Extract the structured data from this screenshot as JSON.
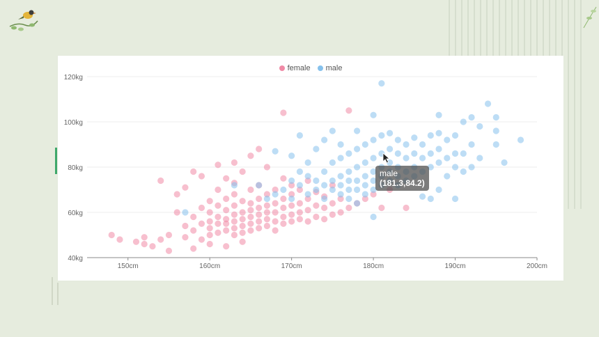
{
  "colors": {
    "background": "#e6ecde",
    "female": "#f08aa6",
    "male": "#86c1ec",
    "accent": "#3ea86a"
  },
  "legend": [
    {
      "name": "female",
      "color": "#f08aa6"
    },
    {
      "name": "male",
      "color": "#86c1ec"
    }
  ],
  "tooltip": {
    "series": "male",
    "value": "(181.3,84.2)"
  },
  "chart_data": {
    "type": "scatter",
    "xlim": [
      145,
      200
    ],
    "ylim": [
      40,
      120
    ],
    "x_ticks": [
      "150cm",
      "160cm",
      "170cm",
      "180cm",
      "190cm",
      "200cm"
    ],
    "x_tick_values": [
      150,
      160,
      170,
      180,
      190,
      200
    ],
    "y_ticks": [
      "40kg",
      "60kg",
      "80kg",
      "100kg",
      "120kg"
    ],
    "y_tick_values": [
      40,
      60,
      80,
      100,
      120
    ],
    "grid": true,
    "legend_position": "top-center",
    "series": [
      {
        "name": "female",
        "color": "#f08aa6",
        "points": [
          [
            148,
            50
          ],
          [
            149,
            48
          ],
          [
            151,
            47
          ],
          [
            152,
            46
          ],
          [
            152,
            49
          ],
          [
            153,
            45
          ],
          [
            154,
            48
          ],
          [
            155,
            43
          ],
          [
            155,
            50
          ],
          [
            156,
            60
          ],
          [
            157,
            54
          ],
          [
            157,
            49
          ],
          [
            158,
            52
          ],
          [
            158,
            58
          ],
          [
            159,
            55
          ],
          [
            159,
            62
          ],
          [
            159,
            48
          ],
          [
            160,
            50
          ],
          [
            160,
            53
          ],
          [
            160,
            56
          ],
          [
            160,
            60
          ],
          [
            160,
            65
          ],
          [
            161,
            51
          ],
          [
            161,
            55
          ],
          [
            161,
            58
          ],
          [
            161,
            63
          ],
          [
            161,
            70
          ],
          [
            162,
            52
          ],
          [
            162,
            55
          ],
          [
            162,
            57
          ],
          [
            162,
            61
          ],
          [
            162,
            66
          ],
          [
            162,
            75
          ],
          [
            163,
            50
          ],
          [
            163,
            53
          ],
          [
            163,
            56
          ],
          [
            163,
            59
          ],
          [
            163,
            63
          ],
          [
            163,
            68
          ],
          [
            163,
            73
          ],
          [
            164,
            51
          ],
          [
            164,
            54
          ],
          [
            164,
            57
          ],
          [
            164,
            60
          ],
          [
            164,
            65
          ],
          [
            164,
            78
          ],
          [
            165,
            52
          ],
          [
            165,
            55
          ],
          [
            165,
            58
          ],
          [
            165,
            61
          ],
          [
            165,
            64
          ],
          [
            165,
            70
          ],
          [
            165,
            85
          ],
          [
            166,
            53
          ],
          [
            166,
            56
          ],
          [
            166,
            59
          ],
          [
            166,
            62
          ],
          [
            166,
            66
          ],
          [
            166,
            72
          ],
          [
            167,
            54
          ],
          [
            167,
            57
          ],
          [
            167,
            60
          ],
          [
            167,
            63
          ],
          [
            167,
            68
          ],
          [
            167,
            80
          ],
          [
            168,
            52
          ],
          [
            168,
            56
          ],
          [
            168,
            60
          ],
          [
            168,
            64
          ],
          [
            168,
            70
          ],
          [
            169,
            55
          ],
          [
            169,
            58
          ],
          [
            169,
            62
          ],
          [
            169,
            66
          ],
          [
            169,
            75
          ],
          [
            169,
            104
          ],
          [
            170,
            56
          ],
          [
            170,
            59
          ],
          [
            170,
            63
          ],
          [
            170,
            68
          ],
          [
            170,
            72
          ],
          [
            171,
            57
          ],
          [
            171,
            60
          ],
          [
            171,
            64
          ],
          [
            171,
            70
          ],
          [
            172,
            56
          ],
          [
            172,
            61
          ],
          [
            172,
            66
          ],
          [
            172,
            74
          ],
          [
            173,
            58
          ],
          [
            173,
            63
          ],
          [
            173,
            69
          ],
          [
            174,
            57
          ],
          [
            174,
            62
          ],
          [
            174,
            67
          ],
          [
            175,
            59
          ],
          [
            175,
            64
          ],
          [
            175,
            72
          ],
          [
            176,
            60
          ],
          [
            176,
            66
          ],
          [
            177,
            62
          ],
          [
            177,
            105
          ],
          [
            178,
            64
          ],
          [
            179,
            66
          ],
          [
            180,
            68
          ],
          [
            181,
            62
          ],
          [
            182,
            70
          ],
          [
            184,
            62
          ],
          [
            154,
            74
          ],
          [
            156,
            68
          ],
          [
            158,
            78
          ],
          [
            157,
            71
          ],
          [
            159,
            76
          ],
          [
            161,
            81
          ],
          [
            163,
            82
          ],
          [
            166,
            88
          ],
          [
            158,
            44
          ],
          [
            162,
            45
          ],
          [
            164,
            47
          ],
          [
            160,
            46
          ]
        ]
      },
      {
        "name": "male",
        "color": "#86c1ec",
        "points": [
          [
            157,
            60
          ],
          [
            163,
            72
          ],
          [
            166,
            72
          ],
          [
            167,
            66
          ],
          [
            168,
            68
          ],
          [
            168,
            87
          ],
          [
            169,
            70
          ],
          [
            170,
            66
          ],
          [
            170,
            74
          ],
          [
            170,
            85
          ],
          [
            171,
            72
          ],
          [
            171,
            78
          ],
          [
            171,
            94
          ],
          [
            172,
            68
          ],
          [
            172,
            76
          ],
          [
            172,
            82
          ],
          [
            173,
            70
          ],
          [
            173,
            74
          ],
          [
            173,
            88
          ],
          [
            174,
            66
          ],
          [
            174,
            72
          ],
          [
            174,
            78
          ],
          [
            174,
            92
          ],
          [
            175,
            70
          ],
          [
            175,
            74
          ],
          [
            175,
            82
          ],
          [
            175,
            96
          ],
          [
            176,
            68
          ],
          [
            176,
            72
          ],
          [
            176,
            76
          ],
          [
            176,
            84
          ],
          [
            176,
            90
          ],
          [
            177,
            66
          ],
          [
            177,
            70
          ],
          [
            177,
            74
          ],
          [
            177,
            78
          ],
          [
            177,
            86
          ],
          [
            178,
            64
          ],
          [
            178,
            70
          ],
          [
            178,
            74
          ],
          [
            178,
            80
          ],
          [
            178,
            88
          ],
          [
            178,
            96
          ],
          [
            179,
            68
          ],
          [
            179,
            72
          ],
          [
            179,
            76
          ],
          [
            179,
            82
          ],
          [
            179,
            90
          ],
          [
            180,
            58
          ],
          [
            180,
            70
          ],
          [
            180,
            74
          ],
          [
            180,
            78
          ],
          [
            180,
            84
          ],
          [
            180,
            92
          ],
          [
            180,
            103
          ],
          [
            181,
            72
          ],
          [
            181,
            76
          ],
          [
            181,
            80
          ],
          [
            181,
            86
          ],
          [
            181,
            94
          ],
          [
            181,
            117
          ],
          [
            182,
            74
          ],
          [
            182,
            78
          ],
          [
            182,
            82
          ],
          [
            182,
            88
          ],
          [
            182,
            95
          ],
          [
            183,
            72
          ],
          [
            183,
            76
          ],
          [
            183,
            80
          ],
          [
            183,
            86
          ],
          [
            183,
            92
          ],
          [
            184,
            74
          ],
          [
            184,
            78
          ],
          [
            184,
            84
          ],
          [
            184,
            90
          ],
          [
            185,
            76
          ],
          [
            185,
            80
          ],
          [
            185,
            86
          ],
          [
            185,
            93
          ],
          [
            186,
            67
          ],
          [
            186,
            78
          ],
          [
            186,
            84
          ],
          [
            186,
            90
          ],
          [
            187,
            66
          ],
          [
            187,
            80
          ],
          [
            187,
            86
          ],
          [
            187,
            94
          ],
          [
            188,
            70
          ],
          [
            188,
            82
          ],
          [
            188,
            88
          ],
          [
            188,
            95
          ],
          [
            188,
            103
          ],
          [
            189,
            76
          ],
          [
            189,
            84
          ],
          [
            189,
            92
          ],
          [
            190,
            66
          ],
          [
            190,
            80
          ],
          [
            190,
            86
          ],
          [
            190,
            94
          ],
          [
            191,
            78
          ],
          [
            191,
            86
          ],
          [
            191,
            100
          ],
          [
            192,
            80
          ],
          [
            192,
            90
          ],
          [
            192,
            102
          ],
          [
            193,
            84
          ],
          [
            193,
            98
          ],
          [
            194,
            108
          ],
          [
            195,
            90
          ],
          [
            195,
            96
          ],
          [
            195,
            102
          ],
          [
            196,
            82
          ],
          [
            198,
            92
          ]
        ]
      }
    ]
  }
}
